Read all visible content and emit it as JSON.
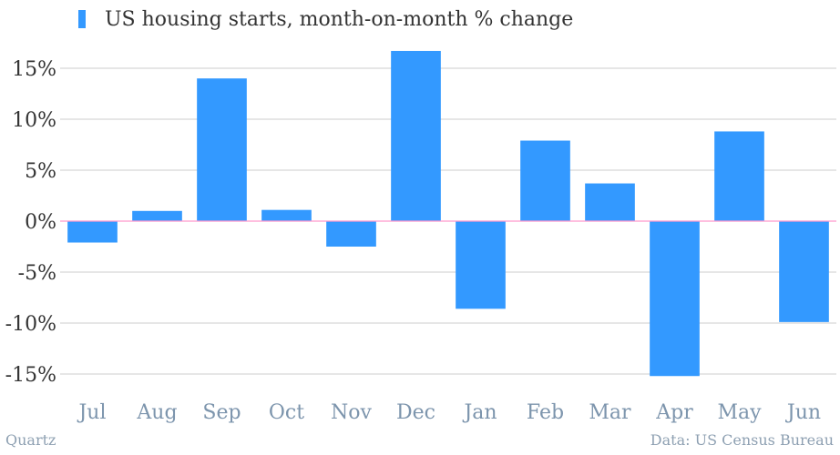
{
  "chart_data": {
    "type": "bar",
    "title": "",
    "legend": {
      "entries": [
        "US housing starts, month-on-month % change"
      ],
      "placement": "top-left"
    },
    "categories": [
      "Jul",
      "Aug",
      "Sep",
      "Oct",
      "Nov",
      "Dec",
      "Jan",
      "Feb",
      "Mar",
      "Apr",
      "May",
      "Jun"
    ],
    "series": [
      {
        "name": "US housing starts, month-on-month % change",
        "values": [
          -2.1,
          1.0,
          14.0,
          1.1,
          -2.5,
          16.7,
          -8.6,
          7.9,
          3.7,
          -15.2,
          8.8,
          -9.9
        ]
      }
    ],
    "yticks": [
      15,
      10,
      5,
      0,
      -5,
      -10,
      -15
    ],
    "ytick_labels": [
      "15%",
      "10%",
      "5%",
      "0%",
      "-5%",
      "-10%",
      "-15%"
    ],
    "ylim": [
      -17.5,
      17.5
    ],
    "grid": true,
    "xlabel": "",
    "ylabel": "",
    "colors": {
      "bar": "#3399ff",
      "grid": "#cccccc",
      "zero_line": "#ff99cc"
    }
  },
  "footer": {
    "source_left": "Quartz",
    "source_right": "Data: US Census Bureau"
  }
}
